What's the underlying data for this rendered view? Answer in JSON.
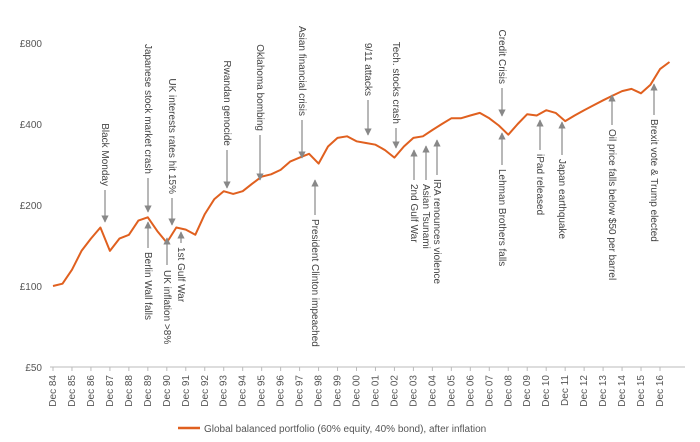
{
  "chart_data": {
    "type": "line",
    "log_scale": true,
    "grid": false,
    "legend": "bottom",
    "categories": [
      "Dec 84",
      null,
      "Dec 85",
      null,
      "Dec 86",
      null,
      "Dec 87",
      null,
      "Dec 88",
      null,
      "Dec 89",
      null,
      "Dec 90",
      null,
      "Dec 91",
      null,
      "Dec 92",
      null,
      "Dec 93",
      null,
      "Dec 94",
      null,
      "Dec 95",
      null,
      "Dec 96",
      null,
      "Dec 97",
      null,
      "Dec 98",
      null,
      "Dec 99",
      null,
      "Dec 00",
      null,
      "Dec 01",
      null,
      "Dec 02",
      null,
      "Dec 03",
      null,
      "Dec 04",
      null,
      "Dec 05",
      null,
      "Dec 06",
      null,
      "Dec 07",
      null,
      "Dec 08",
      null,
      "Dec 09",
      null,
      "Dec 10",
      null,
      "Dec 11",
      null,
      "Dec 12",
      null,
      "Dec 13",
      null,
      "Dec 14",
      null,
      "Dec 15",
      null,
      "Dec 16",
      null
    ],
    "series": [
      {
        "name": "Global balanced portfolio (60% equity, 40% bond), after inflation",
        "color": "#e0601f",
        "values": [
          100,
          102,
          115,
          135,
          150,
          165,
          135,
          150,
          155,
          175,
          180,
          160,
          145,
          165,
          162,
          155,
          185,
          210,
          225,
          220,
          225,
          240,
          255,
          260,
          270,
          290,
          300,
          310,
          285,
          330,
          355,
          360,
          345,
          340,
          335,
          320,
          300,
          330,
          355,
          360,
          380,
          400,
          420,
          420,
          430,
          440,
          420,
          395,
          365,
          400,
          435,
          430,
          450,
          440,
          410,
          430,
          450,
          470,
          490,
          510,
          530,
          540,
          520,
          560,
          640,
          680
        ]
      }
    ],
    "ylim": [
      50,
      800
    ],
    "yticks": [
      {
        "value": 50,
        "label": "£50"
      },
      {
        "value": 100,
        "label": "£100"
      },
      {
        "value": 200,
        "label": "£200"
      },
      {
        "value": 400,
        "label": "£400"
      },
      {
        "value": 800,
        "label": "£800"
      }
    ],
    "annotations": [
      {
        "text": "Black Monday"
      },
      {
        "text": "Japanese stock market crash"
      },
      {
        "text": "UK interests rates hit 15%"
      },
      {
        "text": "Rwandan genocide"
      },
      {
        "text": "Oklahoma bombing"
      },
      {
        "text": "Asian financial crisis"
      },
      {
        "text": "9/11 attacks"
      },
      {
        "text": "Tech. stocks crash"
      },
      {
        "text": "Credit Crisis"
      },
      {
        "text": "Berlin Wall falls"
      },
      {
        "text": "UK inflation >8%"
      },
      {
        "text": "1st Gulf War"
      },
      {
        "text": "President Clinton impeached"
      },
      {
        "text": "2nd Gulf War"
      },
      {
        "text": "Asian Tsunami"
      },
      {
        "text": "IRA renounces violence"
      },
      {
        "text": "Lehman Brothers falls"
      },
      {
        "text": "iPad released"
      },
      {
        "text": "Japan earthquake"
      },
      {
        "text": "Oil price falls below $50 per barrel"
      },
      {
        "text": "Brexit vote & Trump elected"
      }
    ]
  }
}
